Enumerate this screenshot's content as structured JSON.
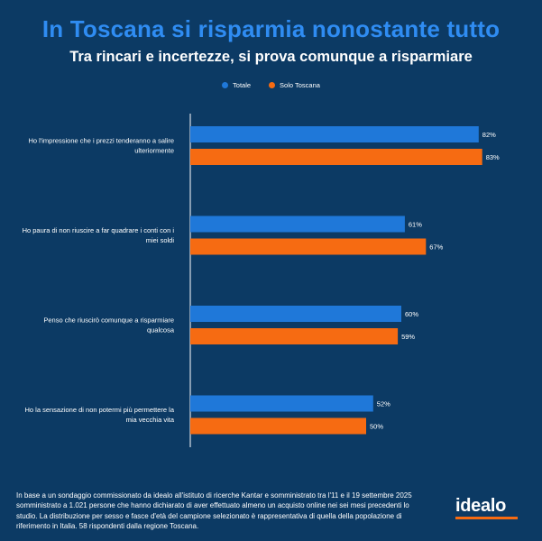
{
  "title": "In Toscana si risparmia nonostante tutto",
  "subtitle": "Tra rincari e incertezze, si prova comunque a risparmiare",
  "colors": {
    "background": "#0c3a64",
    "totale": "#1f78d9",
    "toscana": "#f66b12",
    "title": "#2f8cf2"
  },
  "chart_data": {
    "type": "bar",
    "orientation": "horizontal",
    "categories": [
      "Ho l'impressione che i prezzi tenderanno a salire ulteriormente",
      "Ho paura di non riuscire a far quadrare i conti con i miei soldi",
      "Penso che riuscirò comunque a risparmiare qualcosa",
      "Ho la sensazione di non potermi più permettere la mia vecchia vita"
    ],
    "category_lines": [
      [
        "Ho l'impressione che i prezzi tenderanno a salire",
        "ulteriormente"
      ],
      [
        "Ho paura di non riuscire a far quadrare i conti con i",
        "miei soldi"
      ],
      [
        "Penso che riuscirò comunque a risparmiare",
        "qualcosa"
      ],
      [
        "Ho la sensazione di non potermi più permettere la",
        "mia vecchia vita"
      ]
    ],
    "series": [
      {
        "name": "Totale",
        "values": [
          82,
          61,
          60,
          52
        ],
        "labels": [
          "82%",
          "61%",
          "60%",
          "52%"
        ]
      },
      {
        "name": "Solo Toscana",
        "values": [
          83,
          67,
          59,
          50
        ],
        "labels": [
          "83%",
          "67%",
          "59%",
          "50%"
        ]
      }
    ],
    "xlim": [
      0,
      100
    ],
    "value_suffix": "%",
    "legend_position": "top-center",
    "grid": false
  },
  "footnote": "In base a un sondaggio commissionato da idealo all'istituto di ricerche Kantar e somministrato tra l'11 e il 19 settembre 2025 somministrato a 1.021 persone che hanno dichiarato di aver effettuato almeno un acquisto online nei sei mesi precedenti lo studio. La distribuzione per sesso e fasce d'età del campione selezionato è rappresentativa di quella della popolazione di riferimento in Italia. 58 rispondenti dalla regione Toscana.",
  "logo": "idealo"
}
